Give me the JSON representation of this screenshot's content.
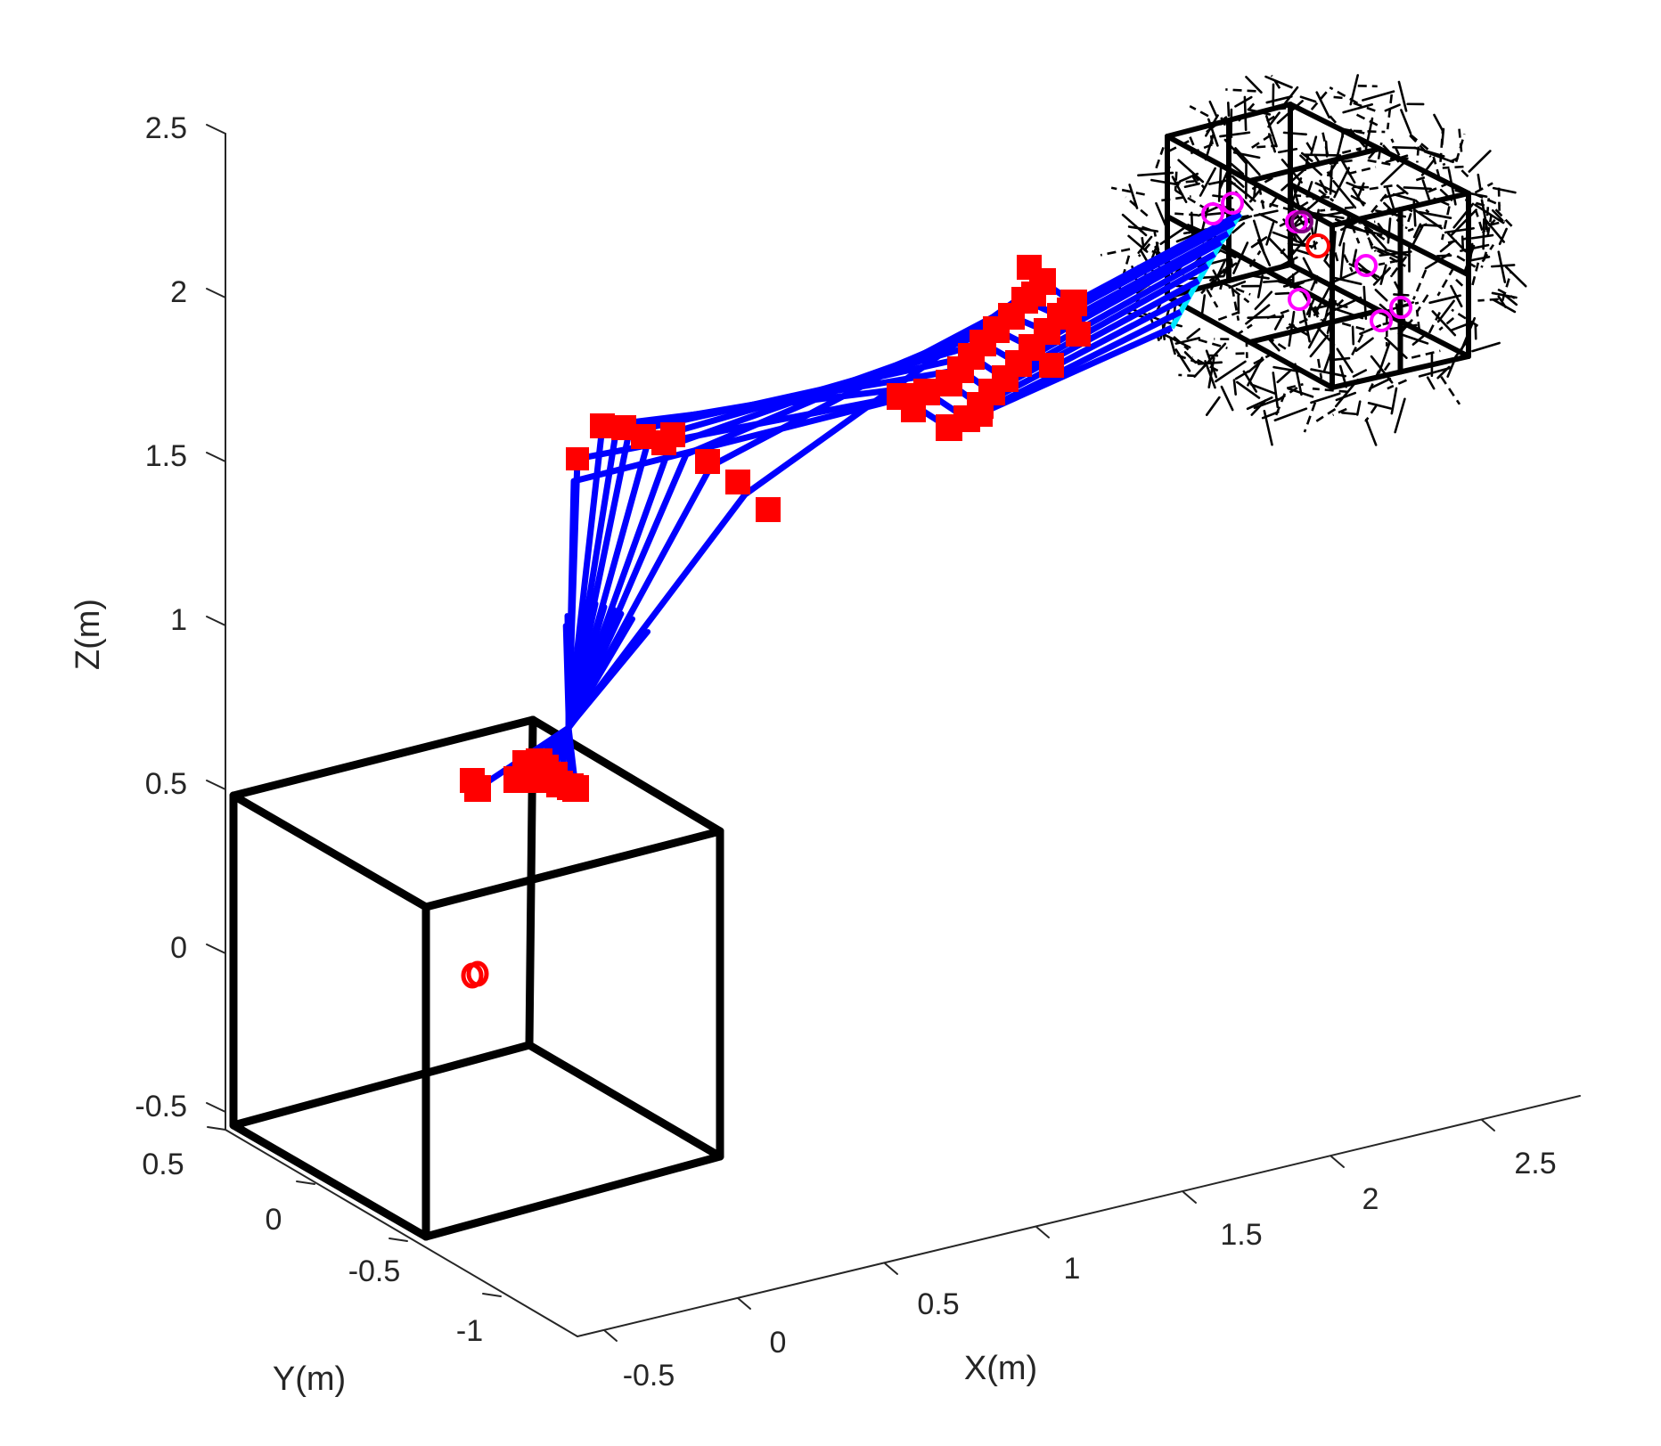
{
  "chart_data": {
    "type": "3d-line",
    "title": "",
    "xlabel": "X(m)",
    "ylabel": "Y(m)",
    "zlabel": "Z(m)",
    "xticks": [
      "-0.5",
      "0",
      "0.5",
      "1",
      "1.5",
      "2",
      "2.5"
    ],
    "yticks": [
      "0.5",
      "0",
      "-0.5",
      "-1"
    ],
    "zticks": [
      "2.5",
      "2",
      "1.5",
      "1",
      "0.5",
      "0",
      "-0.5"
    ],
    "grid": false,
    "legend": "none",
    "colors": {
      "arm_links": "#0000ff",
      "joints": "#ff0000",
      "end_effector_path": "#00e5ff",
      "box": "#000000",
      "targets": "#ff00ff",
      "goal": "#ff0000",
      "axes": "#262626"
    },
    "series": [
      {
        "name": "",
        "role": "start-box",
        "center": [
          -0.4,
          0.1,
          0.0
        ],
        "size": 1.0,
        "color": "#000000"
      },
      {
        "name": "",
        "role": "goal-box",
        "center": [
          2.2,
          0.0,
          2.05
        ],
        "size": 0.6,
        "color": "#000000"
      },
      {
        "name": "",
        "role": "arm-snapshots",
        "color": "#0000ff",
        "marker_color": "#ff0000",
        "count": 10
      },
      {
        "name": "",
        "role": "goal-points",
        "color": "#ff00ff",
        "count": 10
      }
    ]
  }
}
